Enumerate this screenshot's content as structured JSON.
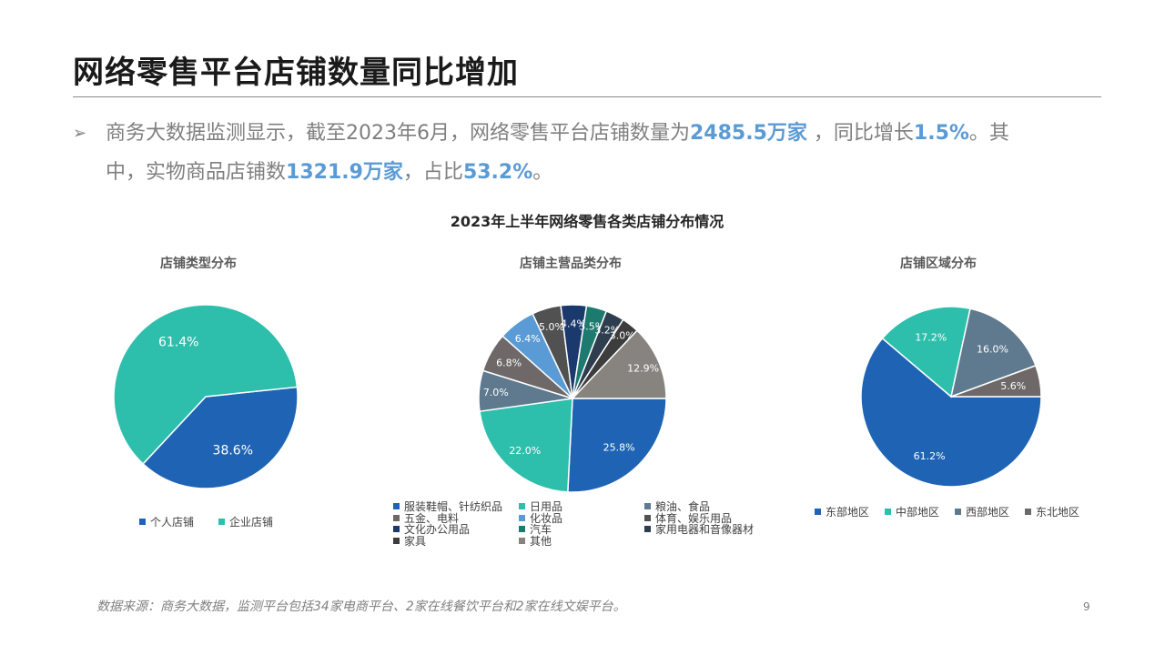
{
  "slide": {
    "title": "网络零售平台店铺数量同比增加",
    "bullet": {
      "arrow": "➢",
      "line1_a": "商务大数据监测显示，截至2023年6月，网络零售平台店铺数量为",
      "line1_b": "2485.5万家",
      "line1_c": " ，同比增长",
      "line1_d": "1.5%",
      "line1_e": "。其",
      "line2_a": "中，实物商品店铺数",
      "line2_b": "1321.9万家",
      "line2_c": "，占比",
      "line2_d": "53.2%",
      "line2_e": "。"
    },
    "chart_title": "2023年上半年网络零售各类店铺分布情况",
    "source": "数据来源：商务大数据，监测平台包括34家电商平台、2家在线餐饮平台和2家在线文娱平台。",
    "page_number": "9"
  },
  "chart_data": [
    {
      "type": "pie",
      "title": "店铺类型分布",
      "categories": [
        "个人店铺",
        "企业店铺"
      ],
      "values": [
        38.6,
        61.4
      ],
      "labels": [
        "38.6%",
        "61.4%"
      ],
      "colors": [
        "#1f64b4",
        "#2ebfac"
      ],
      "legend": "bottom"
    },
    {
      "type": "pie",
      "title": "店铺主营品类分布",
      "categories": [
        "服装鞋帽、针纺织品",
        "日用品",
        "粮油、食品",
        "五金、电料",
        "化妆品",
        "体育、娱乐用品",
        "文化办公用品",
        "汽车",
        "家用电器和音像器材",
        "家具",
        "其他"
      ],
      "values": [
        25.8,
        22.0,
        7.0,
        6.8,
        6.4,
        5.0,
        4.4,
        3.5,
        3.2,
        3.0,
        12.9
      ],
      "labels": [
        "25.8%",
        "22.0%",
        "7.0%",
        "6.8%",
        "6.4%",
        "5.0%",
        "4.4%",
        "3.5%",
        "3.2%",
        "3.0%",
        "12.9%"
      ],
      "colors": [
        "#1f64b4",
        "#2ebfac",
        "#5f7a8f",
        "#6e6868",
        "#5b9bd5",
        "#515151",
        "#1a3a6e",
        "#1d7a6e",
        "#2e3e4e",
        "#3d3d3d",
        "#878480"
      ],
      "legend": "bottom"
    },
    {
      "type": "pie",
      "title": "店铺区域分布",
      "categories": [
        "东部地区",
        "中部地区",
        "西部地区",
        "东北地区"
      ],
      "values": [
        61.2,
        17.2,
        16.0,
        5.6
      ],
      "labels": [
        "61.2%",
        "17.2%",
        "16.0%",
        "5.6%"
      ],
      "colors": [
        "#1f64b4",
        "#2ebfac",
        "#5f7a8f",
        "#6e6868"
      ],
      "legend": "bottom"
    }
  ]
}
